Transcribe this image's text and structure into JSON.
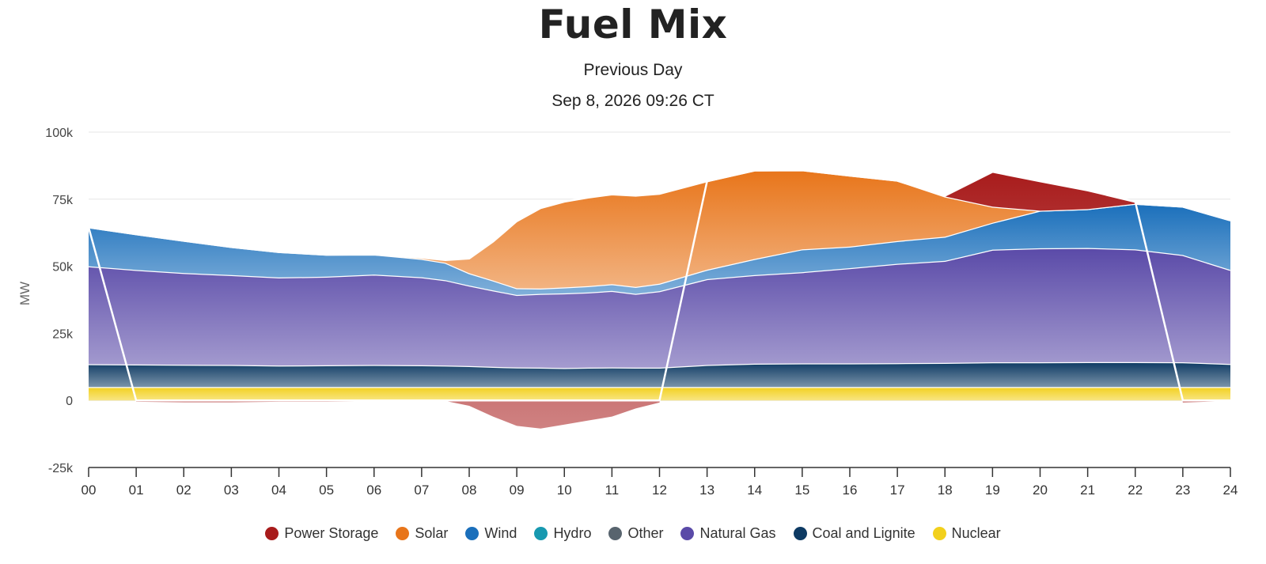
{
  "chart_data": {
    "type": "area",
    "title": "Fuel Mix",
    "subtitle": "Previous Day",
    "timestamp": "Sep 8, 2026 09:26 CT",
    "ylabel": "MW",
    "ylim": [
      -25000,
      100000
    ],
    "yticks": [
      -25000,
      0,
      25000,
      50000,
      75000,
      100000
    ],
    "ytick_labels": [
      "-25k",
      "0",
      "25k",
      "50k",
      "75k",
      "100k"
    ],
    "xlim": [
      0,
      24
    ],
    "xtick_labels": [
      "00",
      "01",
      "02",
      "03",
      "04",
      "05",
      "06",
      "07",
      "08",
      "09",
      "10",
      "11",
      "12",
      "13",
      "14",
      "15",
      "16",
      "17",
      "18",
      "19",
      "20",
      "21",
      "22",
      "23",
      "24"
    ],
    "grid": true,
    "legend_position": "bottom",
    "x": [
      0,
      1,
      2,
      3,
      4,
      5,
      6,
      7,
      7.5,
      8,
      8.5,
      9,
      9.5,
      10,
      10.5,
      11,
      11.5,
      12,
      13,
      14,
      15,
      16,
      17,
      18,
      19,
      20,
      21,
      22,
      23,
      24
    ],
    "series": [
      {
        "name": "Nuclear",
        "color": "#f2d01c",
        "values": [
          5000,
          5000,
          5000,
          5000,
          5000,
          5000,
          5000,
          5000,
          5000,
          5000,
          5000,
          5000,
          5000,
          5000,
          5000,
          5000,
          5000,
          5000,
          5000,
          5000,
          5000,
          5000,
          5000,
          5000,
          5000,
          5000,
          5000,
          5000,
          5000,
          5000
        ]
      },
      {
        "name": "Coal and Lignite",
        "color": "#0d3a63",
        "values": [
          8500,
          8400,
          8300,
          8200,
          8000,
          8100,
          8200,
          8100,
          8000,
          7800,
          7500,
          7300,
          7200,
          7100,
          7200,
          7300,
          7200,
          7200,
          8200,
          8700,
          8800,
          8800,
          8900,
          9000,
          9200,
          9200,
          9300,
          9300,
          9200,
          8600
        ]
      },
      {
        "name": "Natural Gas",
        "color": "#5a4aa8",
        "values": [
          36500,
          35200,
          34200,
          33500,
          32800,
          33000,
          33700,
          32800,
          31800,
          30000,
          28500,
          27000,
          27500,
          27800,
          28000,
          28500,
          27500,
          28500,
          32000,
          33000,
          34000,
          35500,
          37000,
          38000,
          42000,
          42500,
          42500,
          42000,
          40000,
          35000
        ]
      },
      {
        "name": "Wind",
        "color": "#1a6fbb",
        "values": [
          14500,
          13300,
          12000,
          10500,
          9500,
          8200,
          7500,
          6800,
          6500,
          4600,
          3700,
          2500,
          2000,
          2200,
          2400,
          2500,
          2600,
          2800,
          3500,
          6000,
          8500,
          8000,
          8500,
          9000,
          10000,
          14000,
          14500,
          17000,
          18000,
          18500
        ]
      },
      {
        "name": "Solar",
        "color": "#e8751a",
        "values": [
          0,
          0,
          0,
          0,
          0,
          0,
          0,
          500,
          1000,
          5500,
          14500,
          25000,
          30000,
          32000,
          33000,
          33500,
          34000,
          33500,
          33000,
          33000,
          29500,
          26500,
          22500,
          15000,
          6000,
          0,
          0,
          0,
          0,
          0
        ]
      },
      {
        "name": "Power Storage",
        "color": "#a81b1b",
        "values": [
          0,
          -500,
          -700,
          -700,
          -500,
          -500,
          -300,
          -300,
          -200,
          -2000,
          -6000,
          -9500,
          -10500,
          -9000,
          -7500,
          -6000,
          -3000,
          -800,
          0,
          0,
          0,
          0,
          0,
          300,
          13000,
          11000,
          7000,
          700,
          -800,
          -200
        ]
      }
    ],
    "legend": [
      "Power Storage",
      "Solar",
      "Wind",
      "Hydro",
      "Other",
      "Natural Gas",
      "Coal and Lignite",
      "Nuclear"
    ],
    "legend_colors": [
      "#a81b1b",
      "#e8751a",
      "#1a6fbb",
      "#1799b0",
      "#58646e",
      "#5a4aa8",
      "#0d3a63",
      "#f2d01c"
    ]
  }
}
